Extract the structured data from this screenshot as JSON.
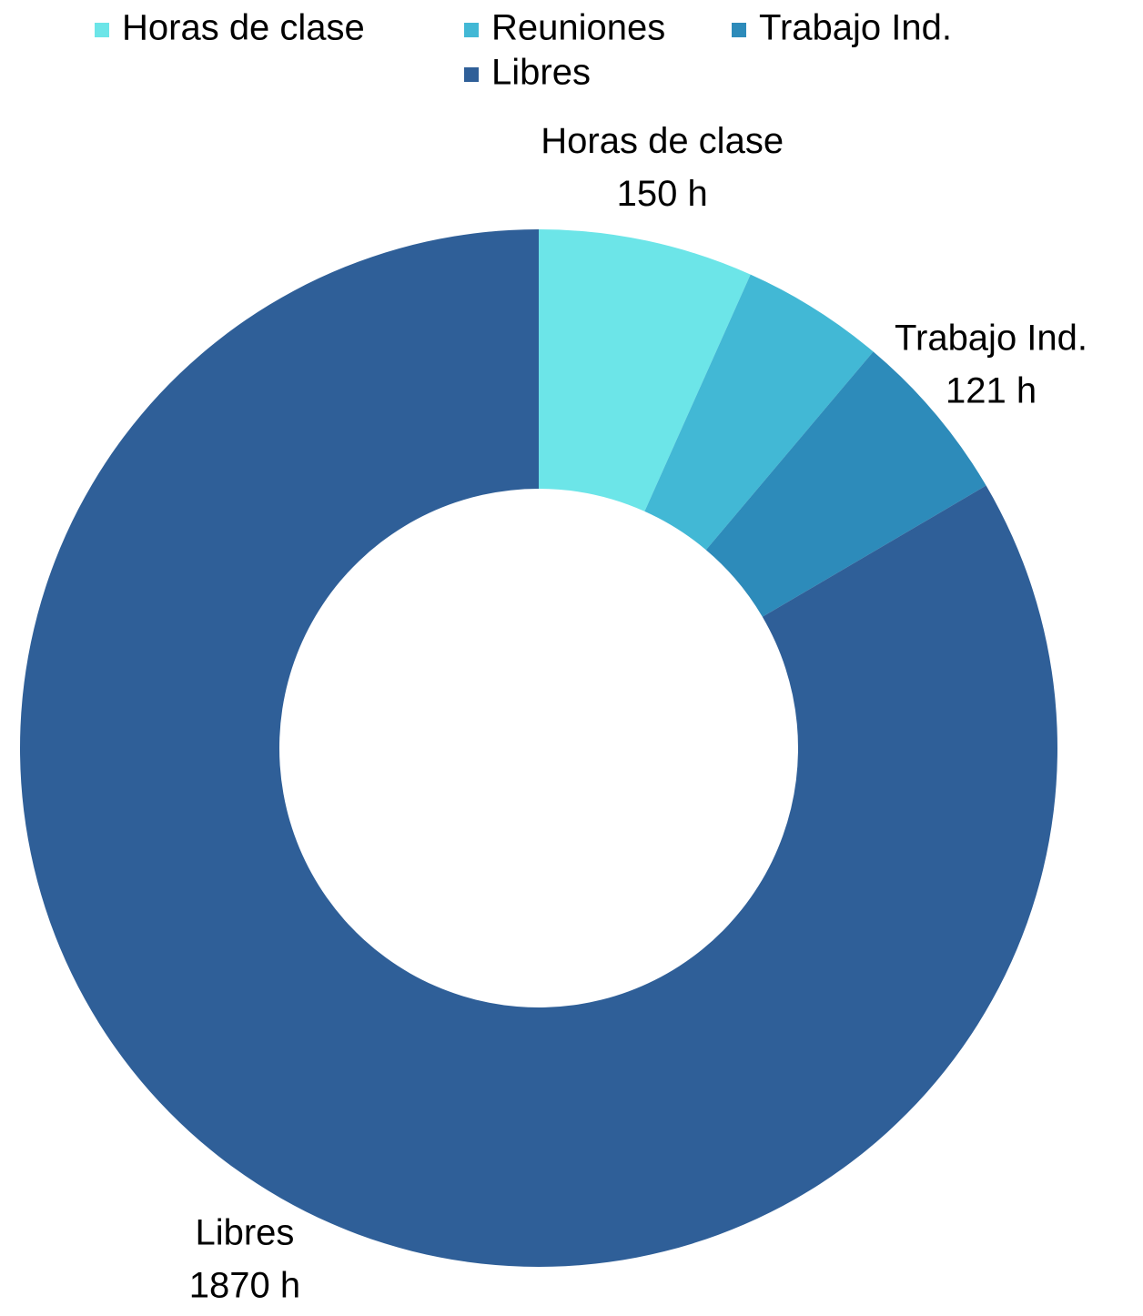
{
  "chart_data": {
    "type": "donut",
    "categories": [
      "Horas de clase",
      "Reuniones",
      "Trabajo Ind.",
      "Libres"
    ],
    "values": [
      150,
      100,
      121,
      1870
    ],
    "value_labels": [
      "150 h",
      null,
      "121 h",
      "1870 h"
    ],
    "colors": [
      "#6ce5e8",
      "#42b8d5",
      "#2d8bba",
      "#2f5f98"
    ],
    "legend": "top"
  }
}
